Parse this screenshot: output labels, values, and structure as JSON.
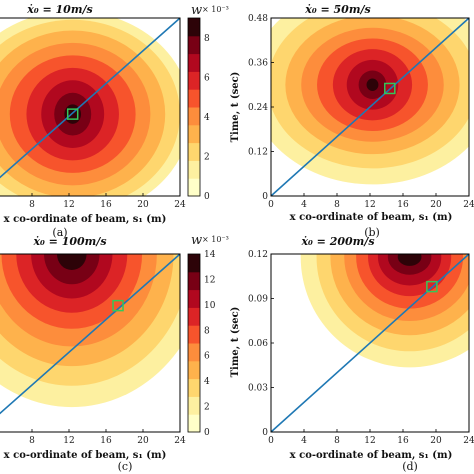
{
  "colorscale": [
    "#ffffc8",
    "#fdf0a0",
    "#fed66e",
    "#feb24c",
    "#fd8d3c",
    "#f7542c",
    "#dc2426",
    "#b1081f",
    "#780015",
    "#2d0308"
  ],
  "line_color": "#1f78b4",
  "marker_color": "#34c759",
  "chart_data": [
    {
      "type": "heatmap",
      "panel": "a",
      "title": "ẋ₀ = 10m/s",
      "caption": "(a)",
      "xlabel": "x co-ordinate of beam, s₁ (m)",
      "ylabel": "",
      "x_ticks": [
        "",
        "8",
        "12",
        "16",
        "20",
        "24"
      ],
      "xlim": [
        4,
        24
      ],
      "ylim": [
        0,
        1
      ],
      "peak": {
        "x": 12.4,
        "y": 0.46
      },
      "marker": {
        "x": 12.4,
        "y": 0.46
      },
      "line": [
        [
          4,
          0.08
        ],
        [
          24,
          1.0
        ]
      ],
      "colorbar": {
        "label": "w",
        "exponent": "× 10⁻³",
        "ticks": [
          "0",
          "2",
          "4",
          "6",
          "8"
        ],
        "max": 9
      }
    },
    {
      "type": "heatmap",
      "panel": "b",
      "title": "ẋ₀ = 50m/s",
      "caption": "(b)",
      "xlabel": "x co-ordinate of beam, s₁ (m)",
      "ylabel": "Time, t (sec)",
      "x_ticks": [
        "0",
        "4",
        "8",
        "12",
        "16",
        "20",
        "24"
      ],
      "y_ticks": [
        "0",
        "0.12",
        "0.24",
        "0.36",
        "0.48"
      ],
      "xlim": [
        0,
        24
      ],
      "ylim": [
        0,
        0.48
      ],
      "peak": {
        "x": 12.3,
        "y": 0.3
      },
      "marker": {
        "x": 14.4,
        "y": 0.29
      },
      "line": [
        [
          0,
          0
        ],
        [
          24,
          0.48
        ]
      ]
    },
    {
      "type": "heatmap",
      "panel": "c",
      "title": "ẋ₀ = 100m/s",
      "caption": "(c)",
      "xlabel": "x co-ordinate of beam, s₁ (m)",
      "ylabel": "",
      "x_ticks": [
        "",
        "8",
        "12",
        "16",
        "20",
        "24"
      ],
      "xlim": [
        4,
        24
      ],
      "ylim": [
        0,
        1
      ],
      "peak": {
        "x": 12.3,
        "y": 1.0
      },
      "marker": {
        "x": 17.3,
        "y": 0.71
      },
      "line": [
        [
          4,
          0.08
        ],
        [
          24,
          1.0
        ]
      ],
      "colorbar": {
        "label": "w",
        "exponent": "× 10⁻³",
        "ticks": [
          "0",
          "2",
          "4",
          "6",
          "8",
          "10",
          "12",
          "14"
        ],
        "max": 14
      }
    },
    {
      "type": "heatmap",
      "panel": "d",
      "title": "ẋ₀ = 200m/s",
      "caption": "(d)",
      "xlabel": "x co-ordinate of beam, s₁ (m)",
      "ylabel": "Time, t (sec)",
      "x_ticks": [
        "0",
        "4",
        "8",
        "12",
        "16",
        "20",
        "24"
      ],
      "y_ticks": [
        "0",
        "0.03",
        "0.06",
        "0.09",
        "0.12"
      ],
      "xlim": [
        0,
        24
      ],
      "ylim": [
        0,
        0.12
      ],
      "peak": {
        "x": 16.8,
        "y": 0.118
      },
      "marker": {
        "x": 19.5,
        "y": 0.098
      },
      "line": [
        [
          0,
          0
        ],
        [
          24,
          0.12
        ]
      ]
    }
  ]
}
